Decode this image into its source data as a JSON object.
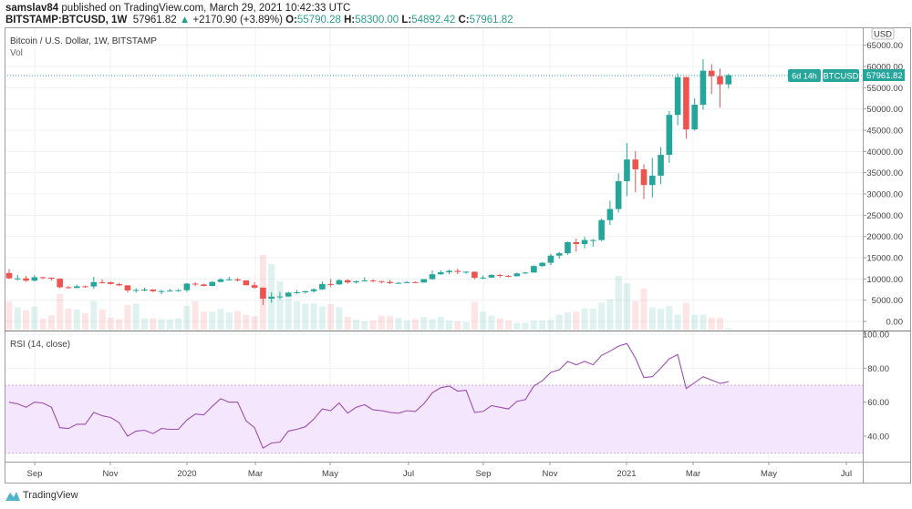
{
  "header": {
    "publisher": "samslav84",
    "published_text": "published on TradingView.com, March 29, 2021 10:42:33 UTC",
    "symbol": "BITSTAMP:BTCUSD, 1W",
    "last": "57961.82",
    "change": "+2170.90 (+3.89%)",
    "o_label": "O:",
    "o": "55790.28",
    "h_label": "H:",
    "h": "58300.00",
    "l_label": "L:",
    "l": "54892.42",
    "c_label": "C:",
    "c": "57961.82"
  },
  "footer": {
    "brand": "TradingView"
  },
  "colors": {
    "up": "#26a69a",
    "down": "#ef5350",
    "rsi": "#9c4fb0",
    "rsi_band": "#f3e6fd"
  },
  "chart_data": [
    {
      "type": "candlestick",
      "title": "Bitcoin / U.S. Dollar, 1W, BITSTAMP",
      "volume_label": "Vol",
      "currency": "USD",
      "interval": "1W",
      "x_start": "2019-08-12",
      "x_ticks": [
        "Sep",
        "Nov",
        "2020",
        "Mar",
        "May",
        "Jul",
        "Sep",
        "Nov",
        "2021",
        "Mar",
        "May",
        "Jul"
      ],
      "y_ticks": [
        "0.00",
        "5000.00",
        "10000.00",
        "15000.00",
        "20000.00",
        "25000.00",
        "30000.00",
        "35000.00",
        "40000.00",
        "45000.00",
        "50000.00",
        "55000.00",
        "60000.00",
        "65000.00"
      ],
      "ylim": [
        0,
        65000
      ],
      "price_label": {
        "symbol": "BTCUSD",
        "value": "57961.82",
        "countdown": "6d 14h"
      },
      "close": [
        10140,
        10140,
        9600,
        10400,
        10300,
        10050,
        8050,
        7870,
        8270,
        8220,
        9250,
        9200,
        8800,
        8500,
        7300,
        7400,
        7500,
        7100,
        7150,
        7250,
        7350,
        8900,
        8700,
        8350,
        9300,
        9900,
        9900,
        9650,
        8530,
        7950,
        5360,
        5820,
        5880,
        6770,
        6860,
        7120,
        7550,
        8800,
        8720,
        9700,
        9180,
        9450,
        9660,
        9480,
        9290,
        9010,
        9070,
        9250,
        9160,
        9950,
        11100,
        11560,
        11900,
        11650,
        11700,
        10250,
        10320,
        10930,
        10720,
        10640,
        11300,
        11500,
        13030,
        13800,
        15480,
        16050,
        18650,
        18200,
        19150,
        19150,
        23850,
        26450,
        33000,
        38100,
        35800,
        32100,
        34300,
        39200,
        48600,
        57500,
        45200,
        51000,
        59000,
        57700,
        55790.28,
        57961.82
      ],
      "open_first": 11400,
      "high": [
        12300,
        10950,
        10700,
        10900,
        10500,
        10350,
        10150,
        8400,
        8650,
        8450,
        10500,
        9900,
        9400,
        9100,
        8500,
        7800,
        7900,
        7600,
        7400,
        7700,
        7600,
        9000,
        9200,
        8900,
        9500,
        10200,
        10500,
        10200,
        9700,
        9200,
        8000,
        6900,
        6950,
        7000,
        7400,
        7200,
        7800,
        9400,
        10000,
        9950,
        9950,
        9600,
        10400,
        9900,
        9550,
        9800,
        9300,
        9500,
        9400,
        9950,
        12000,
        12000,
        12200,
        12400,
        11800,
        11700,
        10800,
        11100,
        11200,
        10900,
        11500,
        11700,
        13200,
        14000,
        15900,
        16400,
        18800,
        19500,
        19900,
        19400,
        24200,
        28400,
        34800,
        42000,
        40100,
        37000,
        38500,
        41000,
        49500,
        58350,
        57500,
        52500,
        61700,
        60500,
        59500,
        58300
      ],
      "low": [
        10000,
        9600,
        9300,
        9400,
        10000,
        9600,
        7800,
        7700,
        7900,
        7900,
        7700,
        8900,
        8700,
        8300,
        6800,
        6800,
        7100,
        6900,
        6450,
        7100,
        7000,
        6900,
        8300,
        8250,
        8300,
        9200,
        9600,
        9400,
        8450,
        7700,
        3850,
        4400,
        5250,
        5800,
        6500,
        6550,
        6750,
        7400,
        8100,
        8600,
        8900,
        8900,
        9350,
        9200,
        8950,
        8800,
        8850,
        9050,
        9050,
        9100,
        9800,
        10950,
        11100,
        11100,
        11250,
        9900,
        9900,
        10200,
        10300,
        10400,
        10550,
        11200,
        11500,
        12800,
        13200,
        14800,
        15700,
        16400,
        17200,
        17600,
        18900,
        22700,
        25600,
        29500,
        30400,
        28800,
        29200,
        32300,
        37300,
        46200,
        43000,
        44900,
        49800,
        53500,
        50400,
        54892.42
      ],
      "volume": [
        37,
        30,
        26,
        31,
        15,
        19,
        48,
        28,
        27,
        22,
        38,
        27,
        16,
        14,
        33,
        35,
        15,
        15,
        14,
        14,
        15,
        32,
        38,
        24,
        24,
        28,
        23,
        25,
        20,
        18,
        100,
        88,
        65,
        45,
        38,
        35,
        35,
        31,
        34,
        30,
        17,
        13,
        11,
        12,
        19,
        18,
        16,
        12,
        14,
        17,
        14,
        17,
        12,
        11,
        10,
        37,
        24,
        19,
        15,
        12,
        9,
        9,
        12,
        12,
        13,
        20,
        23,
        24,
        28,
        28,
        36,
        40,
        72,
        62,
        38,
        55,
        30,
        28,
        32,
        20,
        36,
        20,
        20,
        16,
        16,
        2
      ]
    },
    {
      "type": "line",
      "title": "RSI (14, close)",
      "y_ticks": [
        "40.00",
        "60.00",
        "80.00",
        "100.00"
      ],
      "ylim": [
        25,
        101
      ],
      "band": [
        30,
        70
      ],
      "values": [
        60,
        59,
        57,
        60,
        59.5,
        57,
        45,
        44.5,
        47,
        47,
        54,
        52,
        51,
        48,
        40,
        43,
        43.5,
        41.5,
        44.5,
        44,
        44,
        49.5,
        53,
        52.5,
        57.5,
        62,
        60,
        60,
        49,
        45,
        33,
        36,
        36.5,
        43,
        44,
        45.5,
        50,
        56,
        55,
        59.5,
        53.5,
        57,
        58.5,
        55.5,
        55,
        54,
        53.5,
        55,
        54.5,
        59,
        65.5,
        68.5,
        69.5,
        66.5,
        67,
        54,
        54.5,
        58,
        57,
        56,
        60.5,
        61.5,
        69.5,
        72.5,
        77.5,
        79,
        84,
        82,
        84,
        82,
        87.5,
        90,
        93,
        94.5,
        86,
        74.5,
        75,
        80,
        85.5,
        88,
        68,
        71.5,
        75,
        73,
        71,
        72
      ]
    }
  ]
}
